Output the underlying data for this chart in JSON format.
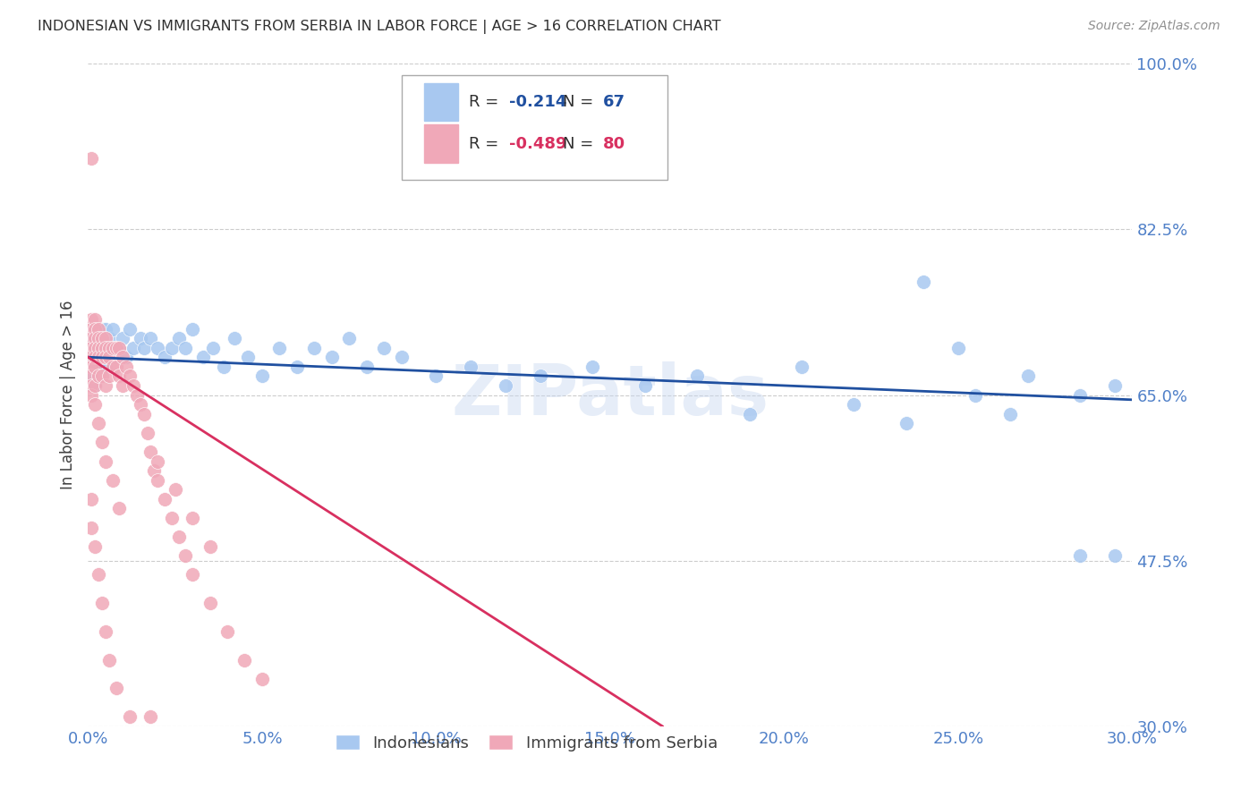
{
  "title": "INDONESIAN VS IMMIGRANTS FROM SERBIA IN LABOR FORCE | AGE > 16 CORRELATION CHART",
  "source": "Source: ZipAtlas.com",
  "ylabel": "In Labor Force | Age > 16",
  "xlim": [
    0.0,
    0.3
  ],
  "ylim": [
    0.3,
    1.0
  ],
  "yticks": [
    0.3,
    0.475,
    0.65,
    0.825,
    1.0
  ],
  "ytick_labels": [
    "30.0%",
    "47.5%",
    "65.0%",
    "82.5%",
    "100.0%"
  ],
  "xticks": [
    0.0,
    0.05,
    0.1,
    0.15,
    0.2,
    0.25,
    0.3
  ],
  "xtick_labels": [
    "0.0%",
    "5.0%",
    "10.0%",
    "15.0%",
    "20.0%",
    "25.0%",
    "30.0%"
  ],
  "blue_R": -0.214,
  "blue_N": 67,
  "pink_R": -0.489,
  "pink_N": 80,
  "blue_color": "#A8C8F0",
  "pink_color": "#F0A8B8",
  "blue_line_color": "#2050A0",
  "pink_line_color": "#D83060",
  "legend_label_blue": "Indonesians",
  "legend_label_pink": "Immigrants from Serbia",
  "watermark": "ZIPatlas",
  "grid_color": "#CCCCCC",
  "title_color": "#404040",
  "axis_color": "#5080C8",
  "blue_line_x0": 0.0,
  "blue_line_y0": 0.69,
  "blue_line_x1": 0.3,
  "blue_line_y1": 0.645,
  "pink_line_x0": 0.0,
  "pink_line_y0": 0.69,
  "pink_line_x1": 0.165,
  "pink_line_y1": 0.3,
  "blue_scatter_x": [
    0.001,
    0.001,
    0.001,
    0.002,
    0.002,
    0.002,
    0.002,
    0.003,
    0.003,
    0.004,
    0.004,
    0.005,
    0.005,
    0.005,
    0.006,
    0.006,
    0.007,
    0.007,
    0.008,
    0.009,
    0.01,
    0.011,
    0.012,
    0.013,
    0.015,
    0.016,
    0.018,
    0.02,
    0.022,
    0.024,
    0.026,
    0.028,
    0.03,
    0.033,
    0.036,
    0.039,
    0.042,
    0.046,
    0.05,
    0.055,
    0.06,
    0.065,
    0.07,
    0.075,
    0.08,
    0.085,
    0.09,
    0.1,
    0.11,
    0.12,
    0.13,
    0.145,
    0.16,
    0.175,
    0.19,
    0.205,
    0.22,
    0.24,
    0.255,
    0.27,
    0.285,
    0.295,
    0.285,
    0.295,
    0.265,
    0.25,
    0.235
  ],
  "blue_scatter_y": [
    0.69,
    0.71,
    0.67,
    0.7,
    0.72,
    0.68,
    0.66,
    0.71,
    0.69,
    0.72,
    0.68,
    0.7,
    0.72,
    0.68,
    0.71,
    0.69,
    0.7,
    0.72,
    0.69,
    0.7,
    0.71,
    0.69,
    0.72,
    0.7,
    0.71,
    0.7,
    0.71,
    0.7,
    0.69,
    0.7,
    0.71,
    0.7,
    0.72,
    0.69,
    0.7,
    0.68,
    0.71,
    0.69,
    0.67,
    0.7,
    0.68,
    0.7,
    0.69,
    0.71,
    0.68,
    0.7,
    0.69,
    0.67,
    0.68,
    0.66,
    0.67,
    0.68,
    0.66,
    0.67,
    0.63,
    0.68,
    0.64,
    0.77,
    0.65,
    0.67,
    0.65,
    0.66,
    0.48,
    0.48,
    0.63,
    0.7,
    0.62
  ],
  "pink_scatter_x": [
    0.001,
    0.001,
    0.001,
    0.001,
    0.001,
    0.001,
    0.001,
    0.001,
    0.001,
    0.001,
    0.002,
    0.002,
    0.002,
    0.002,
    0.002,
    0.002,
    0.002,
    0.003,
    0.003,
    0.003,
    0.003,
    0.003,
    0.004,
    0.004,
    0.004,
    0.004,
    0.005,
    0.005,
    0.005,
    0.005,
    0.006,
    0.006,
    0.006,
    0.007,
    0.007,
    0.008,
    0.008,
    0.009,
    0.009,
    0.01,
    0.01,
    0.011,
    0.012,
    0.013,
    0.014,
    0.015,
    0.016,
    0.017,
    0.018,
    0.019,
    0.02,
    0.022,
    0.024,
    0.026,
    0.028,
    0.03,
    0.035,
    0.04,
    0.045,
    0.05,
    0.02,
    0.025,
    0.03,
    0.035,
    0.002,
    0.003,
    0.004,
    0.005,
    0.007,
    0.009,
    0.001,
    0.001,
    0.002,
    0.003,
    0.004,
    0.005,
    0.006,
    0.008,
    0.012,
    0.018
  ],
  "pink_scatter_y": [
    0.9,
    0.73,
    0.72,
    0.71,
    0.7,
    0.69,
    0.68,
    0.67,
    0.66,
    0.65,
    0.73,
    0.72,
    0.71,
    0.7,
    0.69,
    0.68,
    0.66,
    0.72,
    0.71,
    0.7,
    0.69,
    0.67,
    0.71,
    0.7,
    0.69,
    0.67,
    0.71,
    0.7,
    0.69,
    0.66,
    0.7,
    0.69,
    0.67,
    0.7,
    0.68,
    0.7,
    0.68,
    0.7,
    0.67,
    0.69,
    0.66,
    0.68,
    0.67,
    0.66,
    0.65,
    0.64,
    0.63,
    0.61,
    0.59,
    0.57,
    0.56,
    0.54,
    0.52,
    0.5,
    0.48,
    0.46,
    0.43,
    0.4,
    0.37,
    0.35,
    0.58,
    0.55,
    0.52,
    0.49,
    0.64,
    0.62,
    0.6,
    0.58,
    0.56,
    0.53,
    0.54,
    0.51,
    0.49,
    0.46,
    0.43,
    0.4,
    0.37,
    0.34,
    0.31,
    0.31
  ]
}
